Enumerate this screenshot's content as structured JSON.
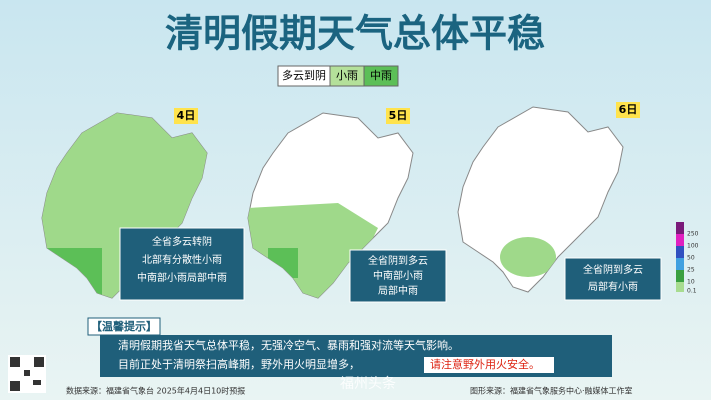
{
  "header": {
    "title": "清明假期天气总体平稳"
  },
  "legend": {
    "items": [
      "多云到阴",
      "小雨",
      "中雨"
    ]
  },
  "panels": [
    {
      "date": "4日",
      "lines": [
        "全省多云转阴",
        "北部有分散性小雨",
        "中南部小雨局部中雨"
      ]
    },
    {
      "date": "5日",
      "lines": [
        "全省阴到多云",
        "中南部小雨",
        "局部中雨"
      ]
    },
    {
      "date": "6日",
      "lines": [
        "全省阴到多云",
        "局部有小雨"
      ]
    }
  ],
  "scale": {
    "labels": [
      "250",
      "100",
      "50",
      "25",
      "10",
      "0.1"
    ]
  },
  "notice": {
    "label": "【温馨提示】",
    "lines": [
      "清明假期我省天气总体平稳，无强冷空气、暴雨和强对流等天气影响。",
      "目前正处于清明祭扫高峰期，野外用火明显增多，"
    ],
    "highlight": "请注意野外用火安全。"
  },
  "footer": {
    "left": "数据来源：福建省气象台 2025年4月4日10时预报",
    "right": "图形来源：福建省气象服务中心·融媒体工作室",
    "watermark": "福州头条"
  }
}
